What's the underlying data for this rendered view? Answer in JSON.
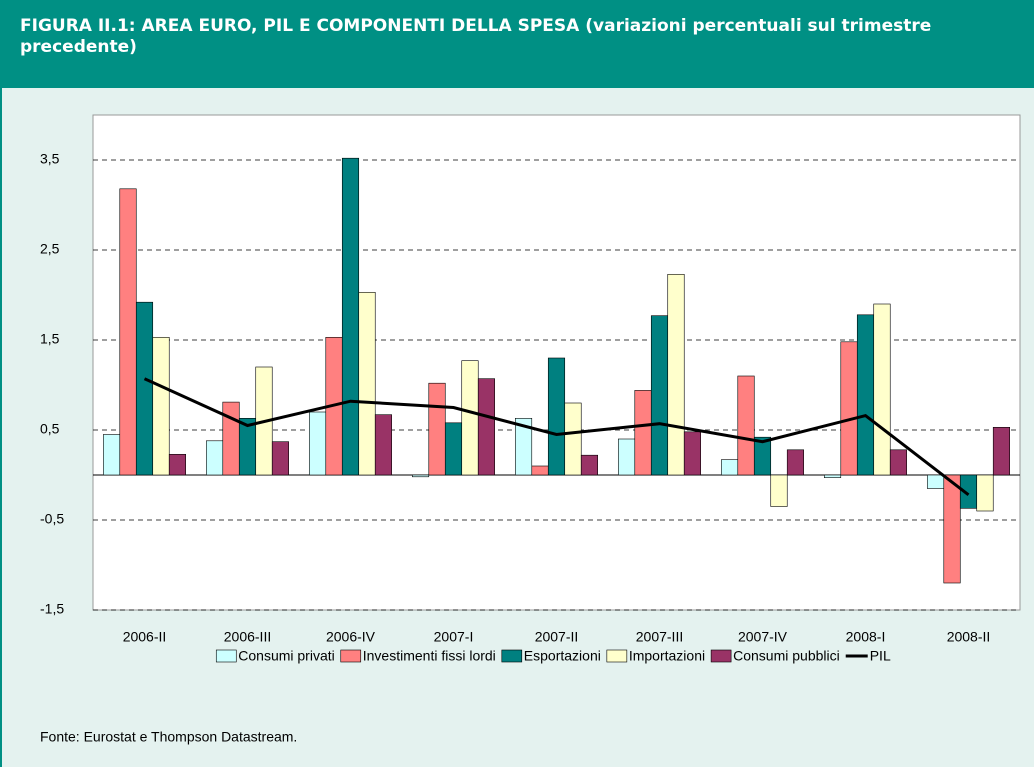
{
  "chart_data": {
    "type": "bar",
    "title": "FIGURA II.1: AREA EURO, PIL E COMPONENTI DELLA SPESA (variazioni percentuali sul trimestre precedente)",
    "source": "Fonte: Eurostat e Thompson Datastream.",
    "categories": [
      "2006-II",
      "2006-III",
      "2006-IV",
      "2007-I",
      "2007-II",
      "2007-III",
      "2007-IV",
      "2008-I",
      "2008-II"
    ],
    "series": [
      {
        "name": "Consumi privati",
        "color": "#ccffff",
        "values": [
          0.45,
          0.38,
          0.7,
          -0.02,
          0.63,
          0.4,
          0.17,
          -0.03,
          -0.15
        ]
      },
      {
        "name": "Investimenti fissi lordi",
        "color": "#ff8080",
        "values": [
          3.18,
          0.81,
          1.53,
          1.02,
          0.1,
          0.94,
          1.1,
          1.48,
          -1.2
        ]
      },
      {
        "name": "Esportazioni",
        "color": "#008080",
        "values": [
          1.92,
          0.63,
          3.52,
          0.58,
          1.3,
          1.77,
          0.42,
          1.78,
          -0.37
        ]
      },
      {
        "name": "Importazioni",
        "color": "#ffffcc",
        "values": [
          1.53,
          1.2,
          2.03,
          1.27,
          0.8,
          2.23,
          -0.35,
          1.9,
          -0.4
        ]
      },
      {
        "name": "Consumi pubblici",
        "color": "#993366",
        "values": [
          0.23,
          0.37,
          0.67,
          1.07,
          0.22,
          0.48,
          0.28,
          0.28,
          0.53
        ]
      },
      {
        "name": "PIL",
        "color": "#000000",
        "type": "line",
        "values": [
          1.07,
          0.55,
          0.82,
          0.75,
          0.45,
          0.57,
          0.37,
          0.66,
          -0.22
        ]
      }
    ],
    "ylim": [
      -1.5,
      4
    ],
    "yticks": [
      {
        "value": -1.5,
        "label": "-1,5"
      },
      {
        "value": -0.5,
        "label": "-0,5"
      },
      {
        "value": 0.5,
        "label": "0,5"
      },
      {
        "value": 1.5,
        "label": "1,5"
      },
      {
        "value": 2.5,
        "label": "2,5"
      },
      {
        "value": 3.5,
        "label": "3,5"
      }
    ],
    "grid": true,
    "legend": "bottom"
  }
}
